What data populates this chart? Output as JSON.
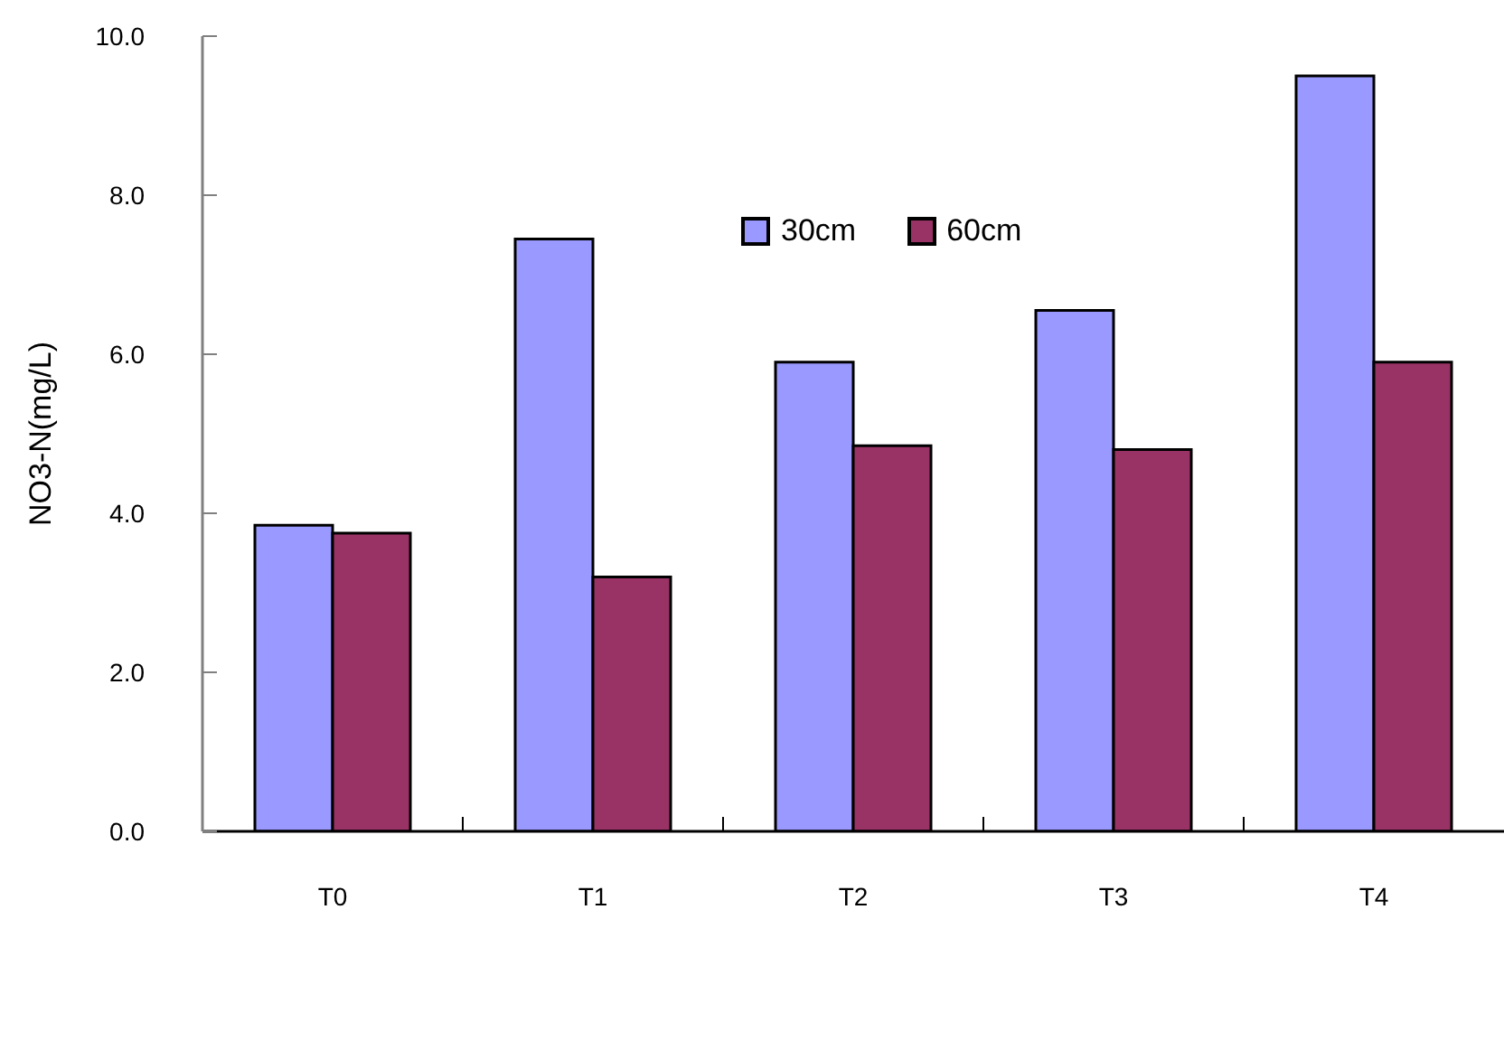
{
  "chart_data": {
    "type": "bar",
    "ylabel": "NO3-N(mg/L)",
    "categories": [
      "T0",
      "T1",
      "T2",
      "T3",
      "T4"
    ],
    "series": [
      {
        "name": "30cm",
        "color": "#9999ff",
        "values": [
          3.85,
          7.45,
          5.9,
          6.55,
          9.5
        ]
      },
      {
        "name": "60cm",
        "color": "#993366",
        "values": [
          3.75,
          3.2,
          4.85,
          4.8,
          5.9
        ]
      }
    ],
    "ylim": [
      0,
      10
    ],
    "yticks": [
      {
        "value": 0,
        "label": "0.0"
      },
      {
        "value": 2,
        "label": "2.0"
      },
      {
        "value": 4,
        "label": "4.0"
      },
      {
        "value": 6,
        "label": "6.0"
      },
      {
        "value": 8,
        "label": "8.0"
      },
      {
        "value": 10,
        "label": "10.0"
      }
    ],
    "legend": "top"
  }
}
